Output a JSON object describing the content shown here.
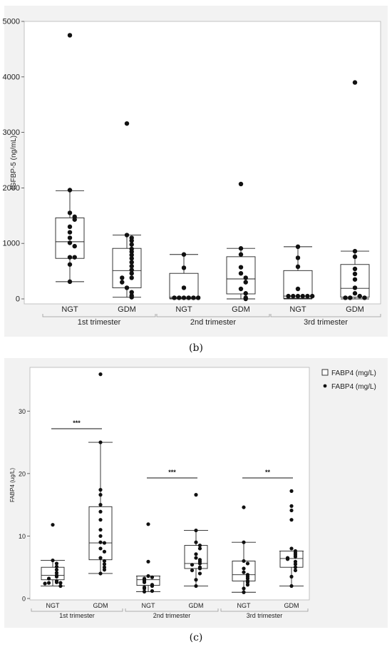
{
  "chart_data": [
    {
      "panel": "(b)",
      "type": "box",
      "ylabel": "IGFBP-5 (ng/mL)",
      "ylim": [
        0,
        5000
      ],
      "yticks": [
        0,
        1000,
        2000,
        3000,
        4000,
        5000
      ],
      "groups": [
        "1st trimester",
        "2nd trimester",
        "3rd trimester"
      ],
      "categories": [
        "NGT",
        "GDM",
        "NGT",
        "GDM",
        "NGT",
        "GDM"
      ],
      "boxes": [
        {
          "min": 310,
          "q1": 730,
          "median": 1030,
          "q3": 1460,
          "max": 1950
        },
        {
          "min": 30,
          "q1": 200,
          "median": 510,
          "q3": 910,
          "max": 1150
        },
        {
          "min": 0,
          "q1": 10,
          "median": 30,
          "q3": 460,
          "max": 800
        },
        {
          "min": 0,
          "q1": 90,
          "median": 360,
          "q3": 760,
          "max": 910
        },
        {
          "min": 0,
          "q1": 10,
          "median": 50,
          "q3": 510,
          "max": 940
        },
        {
          "min": 0,
          "q1": 30,
          "median": 190,
          "q3": 620,
          "max": 860
        }
      ],
      "points": [
        [
          4750,
          1960,
          1550,
          1480,
          1430,
          1300,
          1200,
          1100,
          1010,
          950,
          750,
          750,
          620,
          310
        ],
        [
          3160,
          1150,
          1100,
          1050,
          980,
          900,
          850,
          790,
          730,
          660,
          590,
          520,
          460,
          380,
          380,
          300,
          200,
          120,
          60,
          30
        ],
        [
          800,
          560,
          200,
          20,
          20,
          20,
          20,
          20,
          20
        ],
        [
          2070,
          910,
          800,
          570,
          460,
          380,
          300,
          180,
          100,
          20,
          0
        ],
        [
          940,
          740,
          580,
          180,
          50,
          50,
          50,
          50,
          50,
          50
        ],
        [
          3900,
          860,
          760,
          540,
          450,
          350,
          200,
          100,
          50,
          20,
          20,
          20
        ]
      ]
    },
    {
      "panel": "(c)",
      "type": "box",
      "ylabel": "FABP4 (ug/L)",
      "ylim": [
        0,
        37
      ],
      "yticks": [
        0,
        10,
        20,
        30
      ],
      "groups": [
        "1st trimester",
        "2nd trimester",
        "3rd trimester"
      ],
      "categories": [
        "NGT",
        "GDM",
        "NGT",
        "GDM",
        "NGT",
        "GDM"
      ],
      "legend": [
        "FABP4 (mg/L)",
        "FABP4 (mg/L)"
      ],
      "significance": [
        "***",
        "***",
        "**"
      ],
      "boxes": [
        {
          "min": 2.0,
          "q1": 3.0,
          "median": 3.7,
          "q3": 5.0,
          "max": 6.1
        },
        {
          "min": 4.0,
          "q1": 6.2,
          "median": 8.9,
          "q3": 14.7,
          "max": 25.0
        },
        {
          "min": 1.1,
          "q1": 2.1,
          "median": 3.0,
          "q3": 3.6,
          "max": 3.6
        },
        {
          "min": 2.0,
          "q1": 4.8,
          "median": 5.6,
          "q3": 8.5,
          "max": 10.9
        },
        {
          "min": 1.0,
          "q1": 2.8,
          "median": 3.8,
          "q3": 6.0,
          "max": 9.0
        },
        {
          "min": 2.0,
          "q1": 5.0,
          "median": 6.4,
          "q3": 7.6,
          "max": 7.6
        }
      ],
      "points": [
        [
          11.8,
          6.1,
          5.6,
          5.1,
          4.6,
          4.1,
          3.7,
          3.5,
          3.2,
          2.8,
          2.6,
          2.5,
          2.5,
          2.4,
          2.0
        ],
        [
          35.9,
          25.0,
          17.4,
          16.6,
          15.0,
          13.9,
          12.6,
          11.0,
          10.0,
          9.0,
          8.9,
          8.0,
          7.5,
          6.5,
          6.0,
          5.5,
          5.0,
          4.6,
          4.0
        ],
        [
          11.9,
          5.9,
          3.6,
          3.4,
          3.2,
          3.0,
          2.8,
          2.6,
          2.2,
          2.0,
          1.8,
          1.6,
          1.2,
          1.1
        ],
        [
          16.6,
          10.9,
          9.0,
          8.5,
          8.0,
          7.1,
          6.5,
          6.2,
          5.9,
          5.6,
          5.4,
          5.0,
          4.8,
          4.5,
          4.0,
          3.0,
          2.0
        ],
        [
          14.6,
          9.0,
          6.0,
          5.6,
          4.8,
          4.2,
          3.8,
          3.5,
          3.2,
          2.8,
          2.6,
          2.2,
          1.6,
          1.0
        ],
        [
          17.2,
          14.8,
          14.1,
          12.6,
          8.0,
          7.6,
          7.3,
          7.0,
          6.7,
          6.5,
          6.3,
          5.9,
          5.5,
          5.0,
          4.5,
          3.5,
          2.0
        ]
      ]
    }
  ],
  "captions": {
    "b": "(b)",
    "c": "(c)"
  }
}
